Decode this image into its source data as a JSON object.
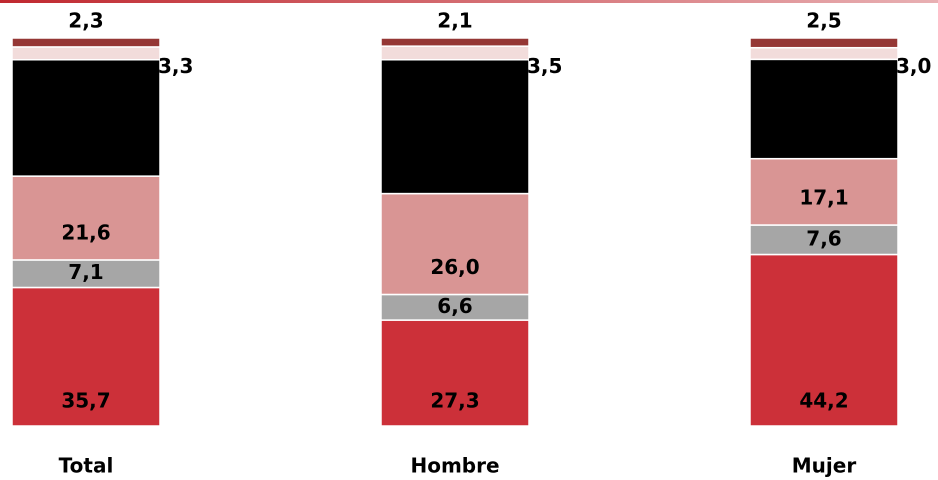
{
  "chart_data": {
    "type": "stacked_bar",
    "categories": [
      "Total",
      "Hombre",
      "Mujer"
    ],
    "ylim": [
      0,
      100
    ],
    "series": [
      {
        "color": "#cc3039",
        "values": [
          35.7,
          27.3,
          44.2
        ],
        "value_labels": [
          "35,7",
          "27,3",
          "44,2"
        ]
      },
      {
        "color": "#a6a6a6",
        "values": [
          7.1,
          6.6,
          7.6
        ],
        "value_labels": [
          "7,1",
          "6,6",
          "7,6"
        ]
      },
      {
        "color": "#d99594",
        "values": [
          21.6,
          26.0,
          17.1
        ],
        "value_labels": [
          "21,6",
          "26,0",
          "17,1"
        ]
      },
      {
        "color": "#000000",
        "values": [
          30.0,
          34.5,
          25.6
        ]
      },
      {
        "color": "#f2dcdb",
        "values": [
          3.3,
          3.5,
          3.0
        ],
        "value_labels": [
          "3,3",
          "3,5",
          "3,0"
        ]
      },
      {
        "color": "#953735",
        "values": [
          2.3,
          2.1,
          2.5
        ],
        "value_labels": [
          "2,3",
          "2,1",
          "2,5"
        ]
      }
    ]
  }
}
